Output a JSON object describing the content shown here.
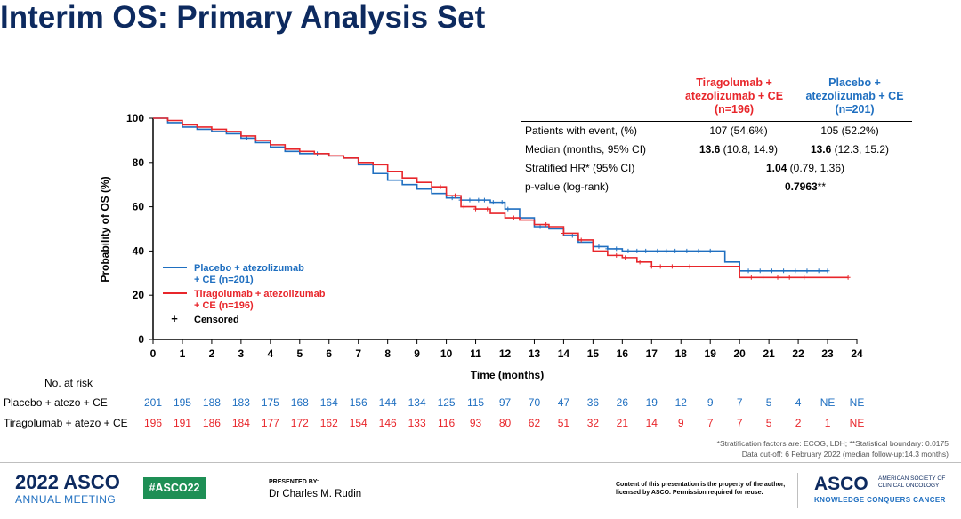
{
  "title": "Interim OS: Primary Analysis Set",
  "colors": {
    "title": "#0d2a5f",
    "red": "#e8262b",
    "blue": "#1f6fc0",
    "hashtag_bg": "#1e8f55"
  },
  "stats_table": {
    "col_red_header": [
      "Tiragolumab +",
      "atezolizumab + CE",
      "(n=196)"
    ],
    "col_blue_header": [
      "Placebo +",
      "atezolizumab + CE",
      "(n=201)"
    ],
    "rows": [
      {
        "label": "Patients with event, (%)",
        "v1": "107 (54.6%)",
        "v2": "105 (52.2%)"
      },
      {
        "label": "Median (months, 95% CI)",
        "v1_bold": "13.6",
        "v1_rest": " (10.8, 14.9)",
        "v2_bold": "13.6",
        "v2_rest": " (12.3, 15.2)"
      },
      {
        "label": "Stratified HR* (95% CI)",
        "mid_bold": "1.04",
        "mid_rest": " (0.79, 1.36)"
      },
      {
        "label": "p-value (log-rank)",
        "mid_bold": "0.7963",
        "mid_rest": "**"
      }
    ]
  },
  "chart_data": {
    "type": "line",
    "title": "",
    "xlabel": "Time (months)",
    "ylabel": "Probability of OS (%)",
    "xlim": [
      0,
      24
    ],
    "ylim": [
      0,
      100
    ],
    "x_ticks": [
      "0",
      "1",
      "2",
      "3",
      "4",
      "5",
      "6",
      "7",
      "8",
      "9",
      "10",
      "11",
      "12",
      "13",
      "14",
      "15",
      "16",
      "17",
      "18",
      "19",
      "20",
      "21",
      "22",
      "23",
      "24"
    ],
    "y_ticks": [
      "0",
      "20",
      "40",
      "60",
      "80",
      "100"
    ],
    "legend": {
      "position": "lower-left",
      "items": [
        {
          "label_lines": [
            "Placebo + atezolizumab",
            "+ CE (n=201)"
          ],
          "color": "#1f6fc0"
        },
        {
          "label_lines": [
            "Tiragolumab + atezolizumab",
            "+ CE (n=196)"
          ],
          "color": "#e8262b"
        },
        {
          "marker": "+",
          "label": "Censored",
          "color": "#000000"
        }
      ]
    },
    "series": [
      {
        "name": "Placebo + atezolizumab + CE (n=201)",
        "color": "#1f6fc0",
        "x": [
          0,
          0.5,
          1,
          1.5,
          2,
          2.5,
          3,
          3.5,
          4,
          4.5,
          5,
          5.5,
          6,
          6.5,
          7,
          7.5,
          8,
          8.5,
          9,
          9.5,
          10,
          10.5,
          11,
          11.5,
          12,
          12.5,
          13,
          13.5,
          14,
          14.5,
          15,
          15.5,
          16,
          17,
          18,
          19,
          19.5,
          20,
          21,
          22,
          23
        ],
        "y": [
          100,
          98,
          96,
          95,
          94,
          93,
          91,
          89,
          87,
          85,
          84,
          84,
          83,
          82,
          79,
          75,
          72,
          70,
          68,
          66,
          64,
          63,
          63,
          62,
          59,
          55,
          51,
          50,
          47,
          44,
          42,
          41,
          40,
          40,
          40,
          40,
          35,
          31,
          31,
          31,
          31
        ],
        "censored_x": [
          3.2,
          5.6,
          10.2,
          10.5,
          10.8,
          11.1,
          11.3,
          11.6,
          11.9,
          12.1,
          12.5,
          13.2,
          14.3,
          15.2,
          15.5,
          15.8,
          16.2,
          16.5,
          16.8,
          17.2,
          17.5,
          17.8,
          18.2,
          18.6,
          19.0,
          20.3,
          20.7,
          21.1,
          21.5,
          21.9,
          22.3,
          22.7,
          23.0
        ]
      },
      {
        "name": "Tiragolumab + atezolizumab + CE (n=196)",
        "color": "#e8262b",
        "x": [
          0,
          0.5,
          1,
          1.5,
          2,
          2.5,
          3,
          3.5,
          4,
          4.5,
          5,
          5.5,
          6,
          6.5,
          7,
          7.5,
          8,
          8.5,
          9,
          9.5,
          10,
          10.5,
          11,
          11.5,
          12,
          12.5,
          13,
          13.5,
          14,
          14.5,
          15,
          15.5,
          16,
          16.5,
          17,
          18,
          19,
          20,
          21,
          22,
          23,
          23.7
        ],
        "y": [
          100,
          99,
          97,
          96,
          95,
          94,
          92,
          90,
          88,
          86,
          85,
          84,
          83,
          82,
          80,
          79,
          76,
          73,
          71,
          69,
          65,
          60,
          59,
          57,
          55,
          54,
          52,
          51,
          48,
          45,
          40,
          38,
          37,
          35,
          33,
          33,
          33,
          28,
          28,
          28,
          28,
          28
        ],
        "censored_x": [
          9.8,
          10.3,
          10.6,
          11.0,
          11.4,
          12.3,
          13.4,
          14.0,
          14.6,
          15.8,
          16.1,
          16.6,
          17.0,
          17.3,
          17.7,
          18.3,
          20.4,
          20.8,
          21.3,
          21.7,
          22.2,
          23.7
        ]
      }
    ]
  },
  "at_risk": {
    "title": "No. at risk",
    "rows": [
      {
        "label": "Placebo + atezo + CE",
        "color": "#1f6fc0",
        "values": [
          "201",
          "195",
          "188",
          "183",
          "175",
          "168",
          "164",
          "156",
          "144",
          "134",
          "125",
          "115",
          "97",
          "70",
          "47",
          "36",
          "26",
          "19",
          "12",
          "9",
          "7",
          "5",
          "4",
          "NE",
          "NE"
        ]
      },
      {
        "label": "Tiragolumab + atezo + CE",
        "color": "#e8262b",
        "values": [
          "196",
          "191",
          "186",
          "184",
          "177",
          "172",
          "162",
          "154",
          "146",
          "133",
          "116",
          "93",
          "80",
          "62",
          "51",
          "32",
          "21",
          "14",
          "9",
          "7",
          "7",
          "5",
          "2",
          "1",
          "NE"
        ]
      }
    ]
  },
  "footnotes": [
    "*Stratification factors are: ECOG, LDH; **Statistical boundary:  0.0175",
    "Data cut-off: 6 February 2022 (median follow-up:14.3  months)"
  ],
  "footer": {
    "asco_year": "2022",
    "asco_word": "ASCO",
    "annual_meeting": "ANNUAL MEETING",
    "hashtag": "#ASCO22",
    "presented_by": "PRESENTED BY:",
    "presenter": "Dr Charles M. Rudin",
    "rights": "Content of this presentation is the property of the author, licensed by ASCO. Permission required for reuse.",
    "asco_logo": "ASCO",
    "asco_society": "AMERICAN SOCIETY OF CLINICAL ONCOLOGY",
    "kcc": "KNOWLEDGE CONQUERS CANCER"
  }
}
